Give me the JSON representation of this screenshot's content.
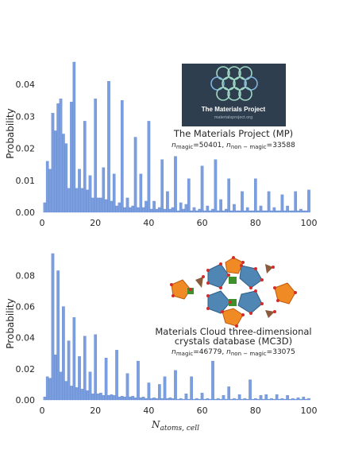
{
  "colors": {
    "bar": "#7b9ede",
    "bar_edge": "#5a80cf",
    "mp_logo_bg": "#2e3e4e",
    "mp_logo_ring": "#9fd8c4",
    "mp_logo_ring_blue": "#7fb3e0",
    "mc3d_blue": "#4f86b3",
    "mc3d_orange": "#f08a24",
    "mc3d_green": "#3f8f2a",
    "mc3d_red": "#d42b2b"
  },
  "chart_data": [
    {
      "type": "bar",
      "title": "The Materials Project (MP)",
      "annotation": {
        "line1": "The Materials Project (MP)",
        "n_magic_label": "n",
        "n_magic_sub": "magic",
        "n_magic_value": "=50401, ",
        "n_non_label": "n",
        "n_non_sub": "non − magic",
        "n_non_value": "=33588"
      },
      "logo": {
        "title": "The Materials Project",
        "url": "materialsproject.org"
      },
      "xlabel": "",
      "ylabel": "Probability",
      "xlim": [
        0,
        100
      ],
      "ylim": [
        0,
        0.047
      ],
      "xticks": [
        "0",
        "20",
        "40",
        "60",
        "80",
        "100"
      ],
      "yticks": [
        "0.00",
        "0.01",
        "0.02",
        "0.03",
        "0.04"
      ],
      "ytick_values": [
        0,
        0.01,
        0.02,
        0.03,
        0.04
      ],
      "bin_width": 1,
      "x": [
        1,
        2,
        3,
        4,
        5,
        6,
        7,
        8,
        9,
        10,
        11,
        12,
        13,
        14,
        15,
        16,
        17,
        18,
        19,
        20,
        21,
        22,
        23,
        24,
        25,
        26,
        27,
        28,
        29,
        30,
        31,
        32,
        33,
        34,
        35,
        36,
        37,
        38,
        39,
        40,
        41,
        42,
        43,
        44,
        45,
        46,
        47,
        48,
        49,
        50,
        51,
        52,
        53,
        54,
        55,
        56,
        57,
        58,
        59,
        60,
        61,
        62,
        63,
        64,
        65,
        66,
        67,
        68,
        69,
        70,
        71,
        72,
        73,
        74,
        75,
        76,
        77,
        78,
        79,
        80,
        81,
        82,
        83,
        84,
        85,
        86,
        87,
        88,
        89,
        90,
        91,
        92,
        93,
        94,
        95,
        96,
        97,
        98,
        99,
        100
      ],
      "values": [
        0.003,
        0.016,
        0.0135,
        0.031,
        0.0255,
        0.034,
        0.0355,
        0.0245,
        0.0215,
        0.0075,
        0.0345,
        0.047,
        0.0075,
        0.0135,
        0.0075,
        0.0285,
        0.007,
        0.0115,
        0.0045,
        0.0355,
        0.0045,
        0.0045,
        0.014,
        0.004,
        0.041,
        0.0035,
        0.012,
        0.002,
        0.003,
        0.035,
        0.0015,
        0.0045,
        0.0015,
        0.002,
        0.0235,
        0.0015,
        0.012,
        0.0015,
        0.0035,
        0.0285,
        0.001,
        0.0035,
        0.001,
        0.0015,
        0.0165,
        0.001,
        0.0065,
        0.001,
        0.0015,
        0.0175,
        0.0005,
        0.003,
        0.001,
        0.0025,
        0.0105,
        0.0005,
        0.0015,
        0.0005,
        0.001,
        0.0145,
        0.0005,
        0.002,
        0.0005,
        0.001,
        0.0165,
        0.0005,
        0.004,
        0.0005,
        0.001,
        0.0105,
        0.0005,
        0.0025,
        0.0005,
        0.0005,
        0.0065,
        0.0005,
        0.0015,
        0.0005,
        0.0005,
        0.0105,
        0.0005,
        0.002,
        0.0005,
        0.0005,
        0.0065,
        0.0005,
        0.0015,
        0.0005,
        0.0005,
        0.0055,
        0.0005,
        0.002,
        0.0005,
        0.0005,
        0.0065,
        0.0005,
        0.001,
        0.0005,
        0.0005,
        0.007
      ]
    },
    {
      "type": "bar",
      "title": "Materials Cloud three-dimensional crystals database (MC3D)",
      "annotation": {
        "line1": "Materials Cloud three-dimensional",
        "line2": "crystals database (MC3D)",
        "n_magic_label": "n",
        "n_magic_sub": "magic",
        "n_magic_value": "=46779, ",
        "n_non_label": "n",
        "n_non_sub": "non − magic",
        "n_non_value": "=33075"
      },
      "xlabel_main": "N",
      "xlabel_sub": "atoms, cell",
      "ylabel": "Probability",
      "xlim": [
        0,
        100
      ],
      "ylim": [
        0,
        0.096
      ],
      "xticks": [
        "0",
        "20",
        "40",
        "60",
        "80",
        "100"
      ],
      "yticks": [
        "0.00",
        "0.02",
        "0.04",
        "0.06",
        "0.08"
      ],
      "ytick_values": [
        0,
        0.02,
        0.04,
        0.06,
        0.08
      ],
      "bin_width": 1,
      "x": [
        1,
        2,
        3,
        4,
        5,
        6,
        7,
        8,
        9,
        10,
        11,
        12,
        13,
        14,
        15,
        16,
        17,
        18,
        19,
        20,
        21,
        22,
        23,
        24,
        25,
        26,
        27,
        28,
        29,
        30,
        31,
        32,
        33,
        34,
        35,
        36,
        37,
        38,
        39,
        40,
        41,
        42,
        43,
        44,
        45,
        46,
        47,
        48,
        49,
        50,
        51,
        52,
        53,
        54,
        55,
        56,
        57,
        58,
        59,
        60,
        61,
        62,
        63,
        64,
        65,
        66,
        67,
        68,
        69,
        70,
        71,
        72,
        73,
        74,
        75,
        76,
        77,
        78,
        79,
        80,
        81,
        82,
        83,
        84,
        85,
        86,
        87,
        88,
        89,
        90,
        91,
        92,
        93,
        94,
        95,
        96,
        97,
        98,
        99,
        100
      ],
      "values": [
        0.002,
        0.015,
        0.014,
        0.094,
        0.029,
        0.083,
        0.018,
        0.06,
        0.012,
        0.038,
        0.009,
        0.053,
        0.008,
        0.028,
        0.007,
        0.041,
        0.006,
        0.018,
        0.004,
        0.042,
        0.004,
        0.0045,
        0.003,
        0.027,
        0.003,
        0.0035,
        0.003,
        0.032,
        0.002,
        0.0025,
        0.002,
        0.017,
        0.002,
        0.0025,
        0.0015,
        0.025,
        0.0015,
        0.002,
        0.001,
        0.011,
        0.001,
        0.0015,
        0.001,
        0.01,
        0.001,
        0.015,
        0.001,
        0.0015,
        0.001,
        0.019,
        0.0005,
        0.001,
        0.0005,
        0.004,
        0.0005,
        0.015,
        0.0005,
        0.001,
        0.0005,
        0.0045,
        0.0005,
        0.001,
        0.0005,
        0.025,
        0.0005,
        0.001,
        0.0005,
        0.003,
        0.0005,
        0.0085,
        0.0005,
        0.001,
        0.0005,
        0.0035,
        0.0005,
        0.001,
        0.0005,
        0.013,
        0.0005,
        0.001,
        0.0005,
        0.003,
        0.0005,
        0.0035,
        0.0005,
        0.001,
        0.0005,
        0.0035,
        0.0005,
        0.001,
        0.0005,
        0.003,
        0.0005,
        0.001,
        0.0005,
        0.0015,
        0.0005,
        0.002,
        0.0005,
        0.001
      ]
    }
  ]
}
